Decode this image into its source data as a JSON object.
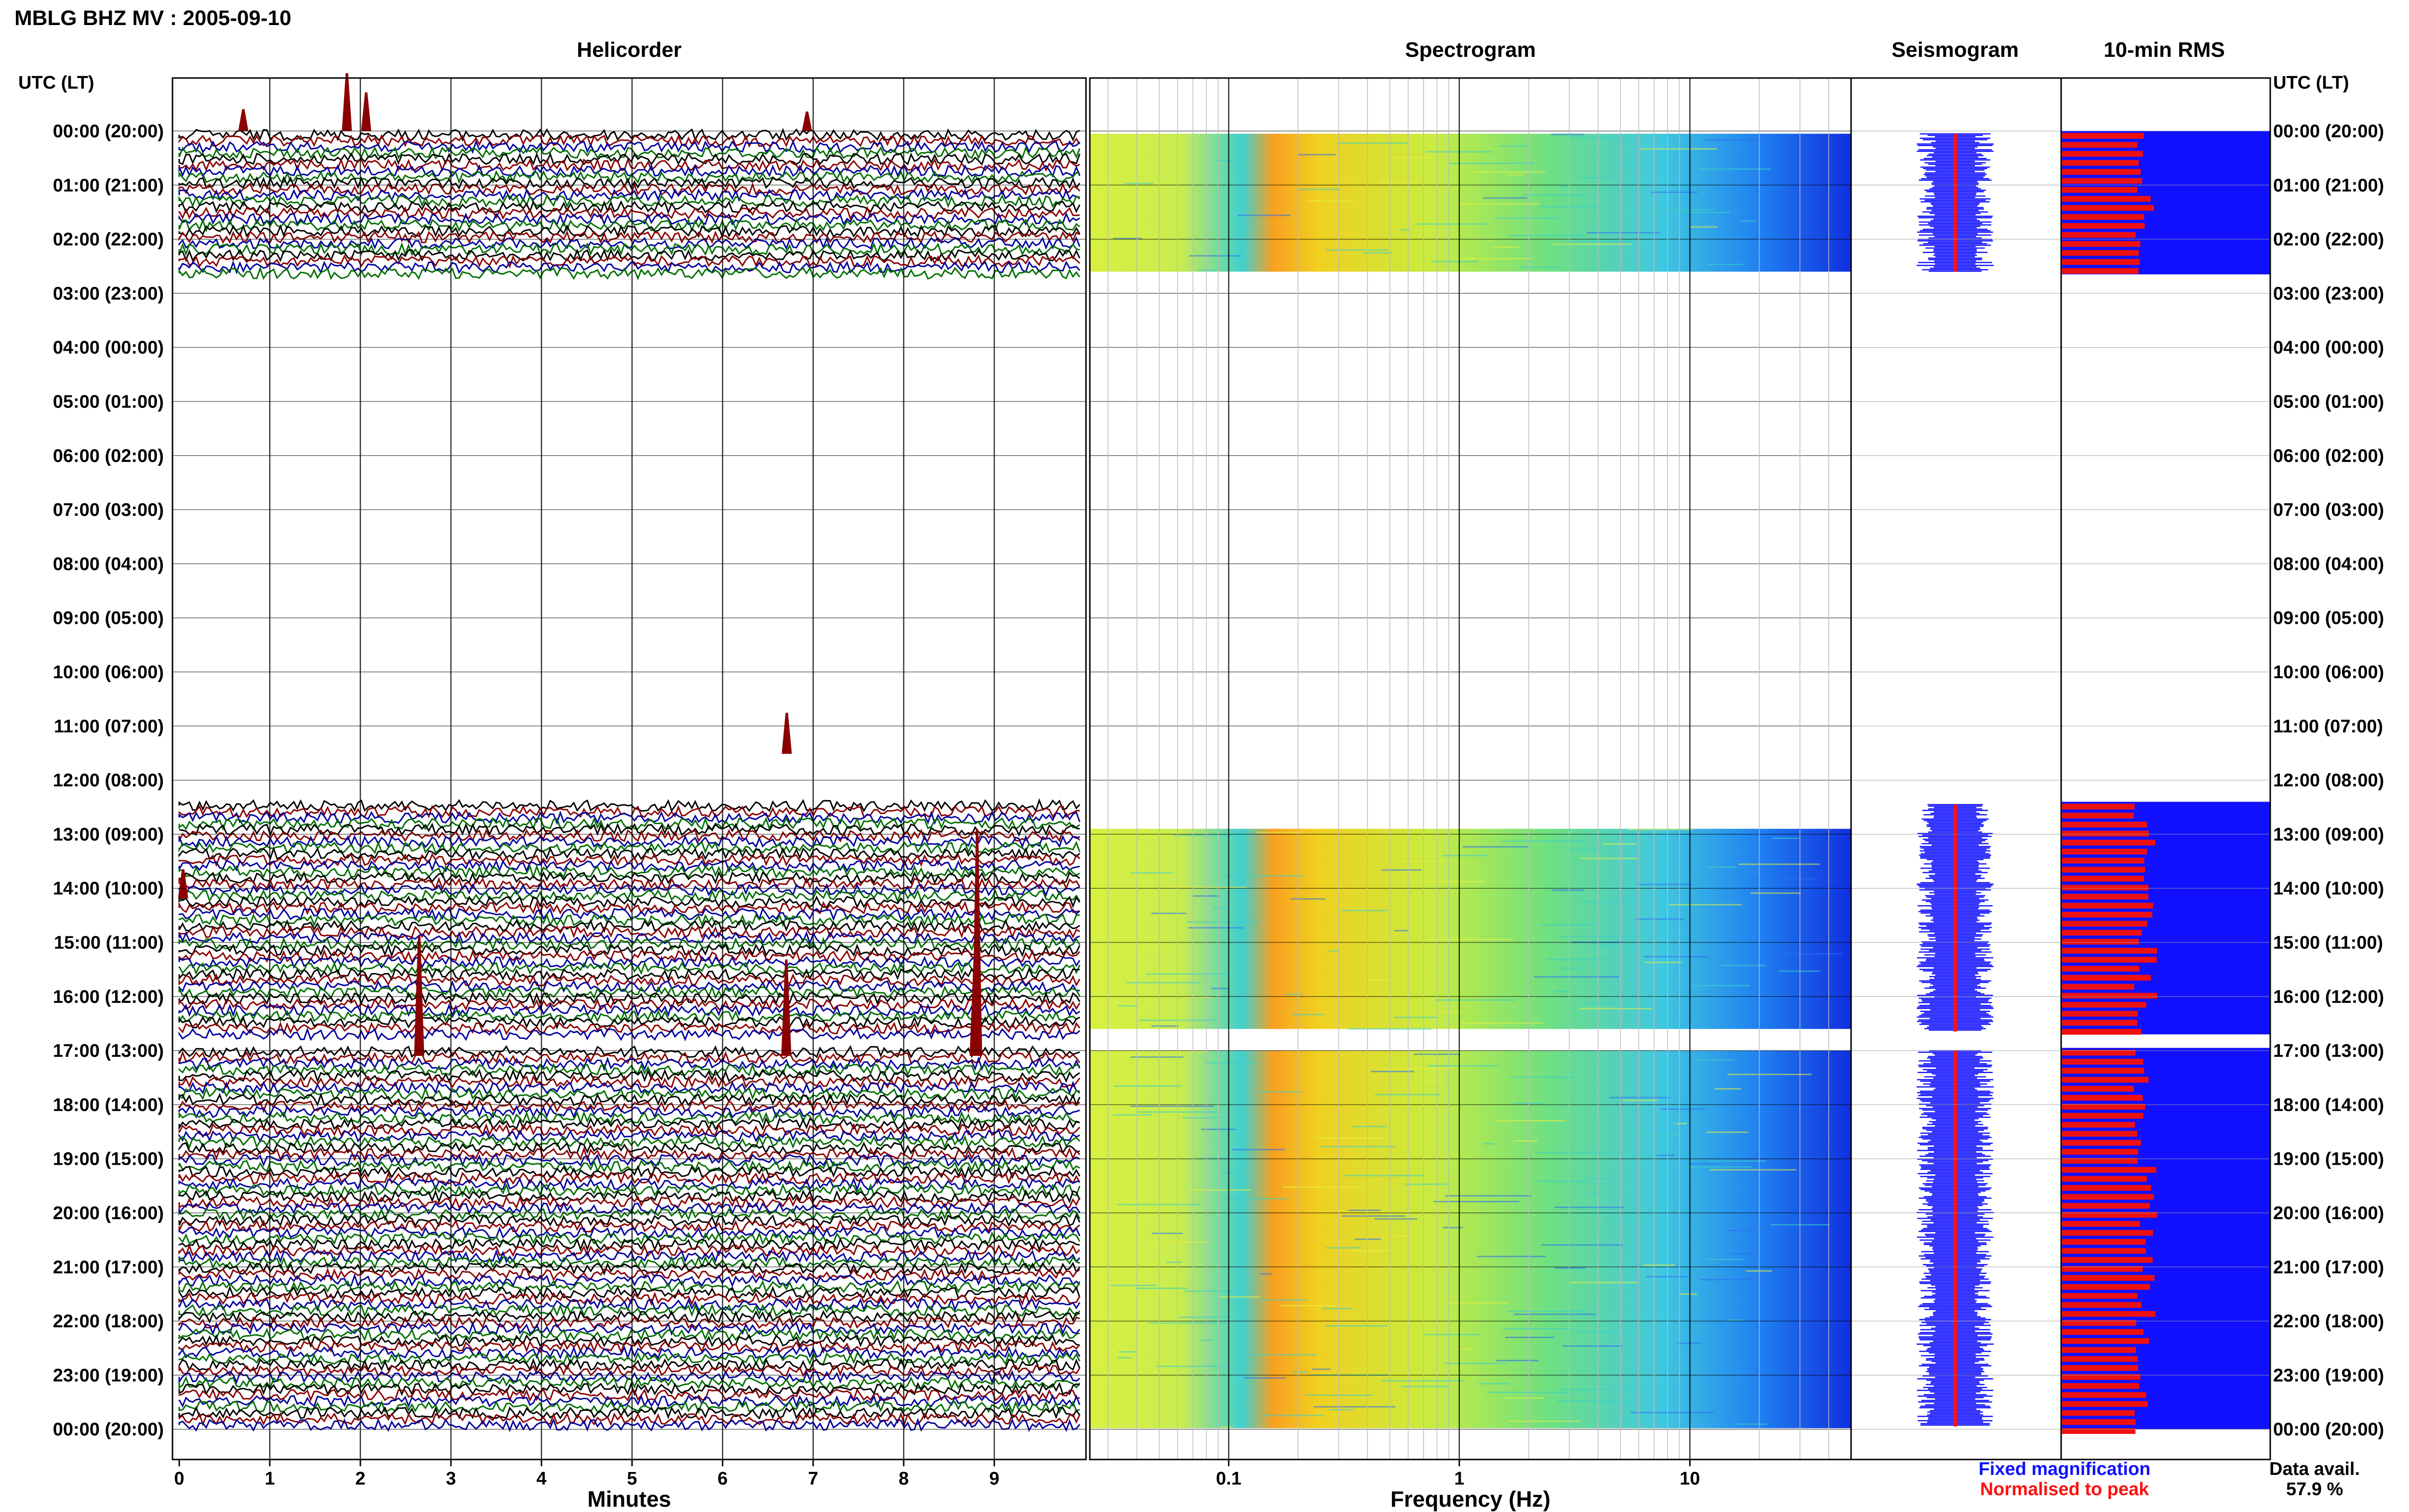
{
  "header": {
    "title": "MBLG BHZ MV : 2005-09-10"
  },
  "panels": {
    "helicorder": "Helicorder",
    "spectrogram": "Spectrogram",
    "seismogram": "Seismogram",
    "rms": "10-min RMS"
  },
  "time_axis": {
    "label": "UTC (LT)",
    "ticks": [
      "00:00 (20:00)",
      "01:00 (21:00)",
      "02:00 (22:00)",
      "03:00 (23:00)",
      "04:00 (00:00)",
      "05:00 (01:00)",
      "06:00 (02:00)",
      "07:00 (03:00)",
      "08:00 (04:00)",
      "09:00 (05:00)",
      "10:00 (06:00)",
      "11:00 (07:00)",
      "12:00 (08:00)",
      "13:00 (09:00)",
      "14:00 (10:00)",
      "15:00 (11:00)",
      "16:00 (12:00)",
      "17:00 (13:00)",
      "18:00 (14:00)",
      "19:00 (15:00)",
      "20:00 (16:00)",
      "21:00 (17:00)",
      "22:00 (18:00)",
      "23:00 (19:00)",
      "00:00 (20:00)"
    ]
  },
  "minutes_axis": {
    "label": "Minutes",
    "ticks": [
      "0",
      "1",
      "2",
      "3",
      "4",
      "5",
      "6",
      "7",
      "8",
      "9"
    ]
  },
  "frequency_axis": {
    "label": "Frequency (Hz)",
    "ticks": [
      "0.1",
      "1",
      "10"
    ]
  },
  "legend": {
    "fixed": "Fixed magnification",
    "normalised": "Normalised to peak",
    "fixed_color": "#1010ff",
    "normalised_color": "#ff1010"
  },
  "availability": {
    "label": "Data avail.",
    "value": "57.9 %"
  },
  "chart_data": {
    "type": "heatmap",
    "trace_colors": [
      "#000000",
      "#8b0000",
      "#0000a0",
      "#007000"
    ],
    "data_segments_utc_hours": [
      [
        0.0,
        2.65
      ],
      [
        12.4,
        16.7
      ],
      [
        16.95,
        24.0
      ]
    ],
    "minutes_range": [
      0,
      10
    ],
    "frequency_range_hz": [
      0.025,
      50
    ],
    "frequency_scale": "log"
  }
}
